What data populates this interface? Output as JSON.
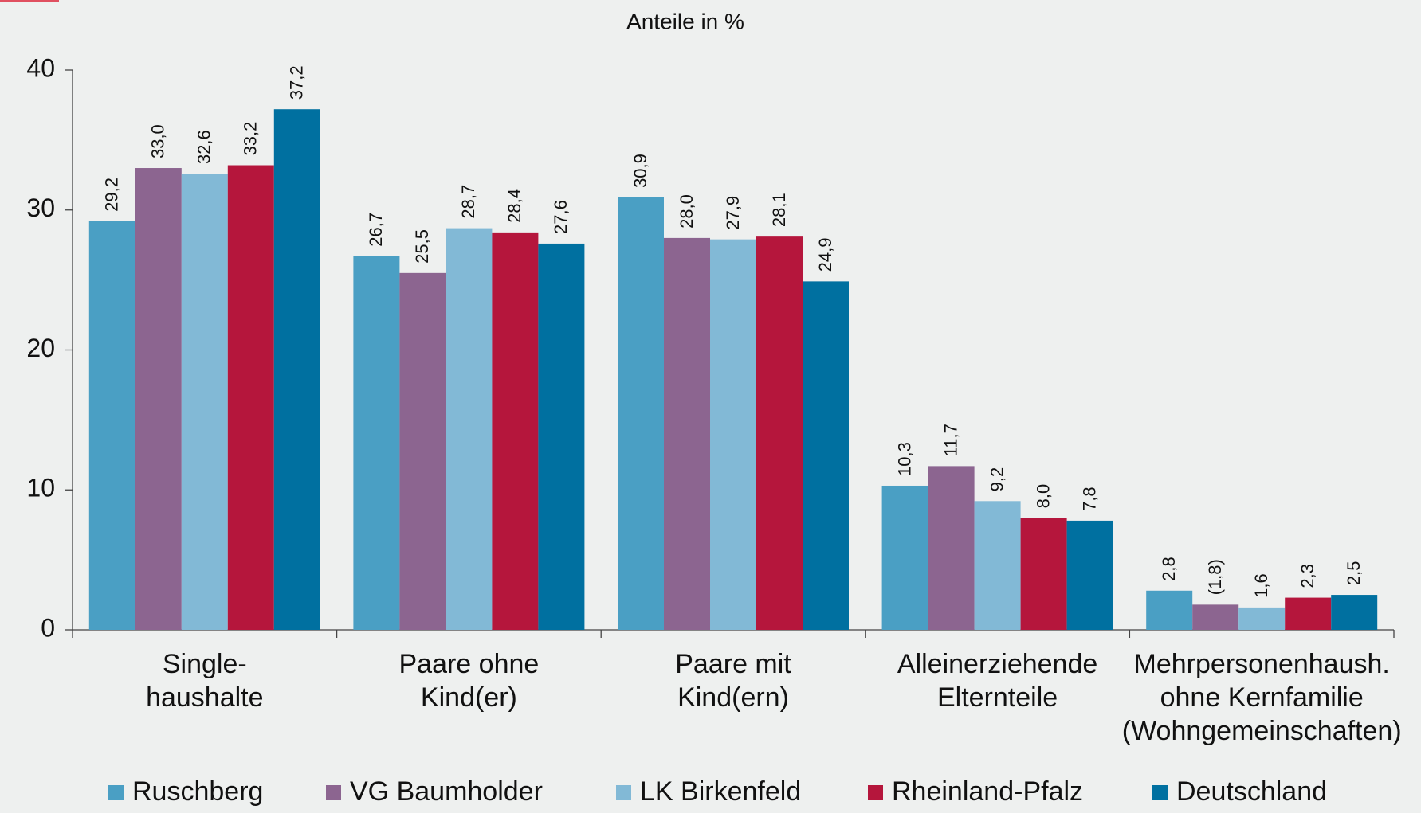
{
  "chart_data": {
    "type": "bar",
    "title": "Anteile in %",
    "categories": [
      [
        "Single-",
        "haushalte"
      ],
      [
        "Paare ohne",
        "Kind(er)"
      ],
      [
        "Paare mit",
        "Kind(ern)"
      ],
      [
        "Alleinerziehende",
        "Elternteile"
      ],
      [
        "Mehrpersonenhaush.",
        "ohne Kernfamilie",
        "(Wohngemeinschaften)"
      ]
    ],
    "series": [
      {
        "name": "Ruschberg",
        "color": "#4a9fc4",
        "values": [
          29.2,
          26.7,
          30.9,
          10.3,
          2.8
        ],
        "value_labels": [
          "29,2",
          "26,7",
          "30,9",
          "10,3",
          "2,8"
        ]
      },
      {
        "name": "VG Baumholder",
        "color": "#8c6590",
        "values": [
          33.0,
          25.5,
          28.0,
          11.7,
          1.8
        ],
        "value_labels": [
          "33,0",
          "25,5",
          "28,0",
          "11,7",
          "(1,8)"
        ]
      },
      {
        "name": "LK Birkenfeld",
        "color": "#82b9d6",
        "values": [
          32.6,
          28.7,
          27.9,
          9.2,
          1.6
        ],
        "value_labels": [
          "32,6",
          "28,7",
          "27,9",
          "9,2",
          "1,6"
        ]
      },
      {
        "name": "Rheinland-Pfalz",
        "color": "#b5163c",
        "values": [
          33.2,
          28.4,
          28.1,
          8.0,
          2.3
        ],
        "value_labels": [
          "33,2",
          "28,4",
          "28,1",
          "8,0",
          "2,3"
        ]
      },
      {
        "name": "Deutschland",
        "color": "#0070a0",
        "values": [
          37.2,
          27.6,
          24.9,
          7.8,
          2.5
        ],
        "value_labels": [
          "37,2",
          "27,6",
          "24,9",
          "7,8",
          "2,5"
        ]
      }
    ],
    "ylim": [
      0,
      40
    ],
    "yticks": [
      0,
      10,
      20,
      30,
      40
    ],
    "grid": false,
    "legend": "bottom"
  }
}
